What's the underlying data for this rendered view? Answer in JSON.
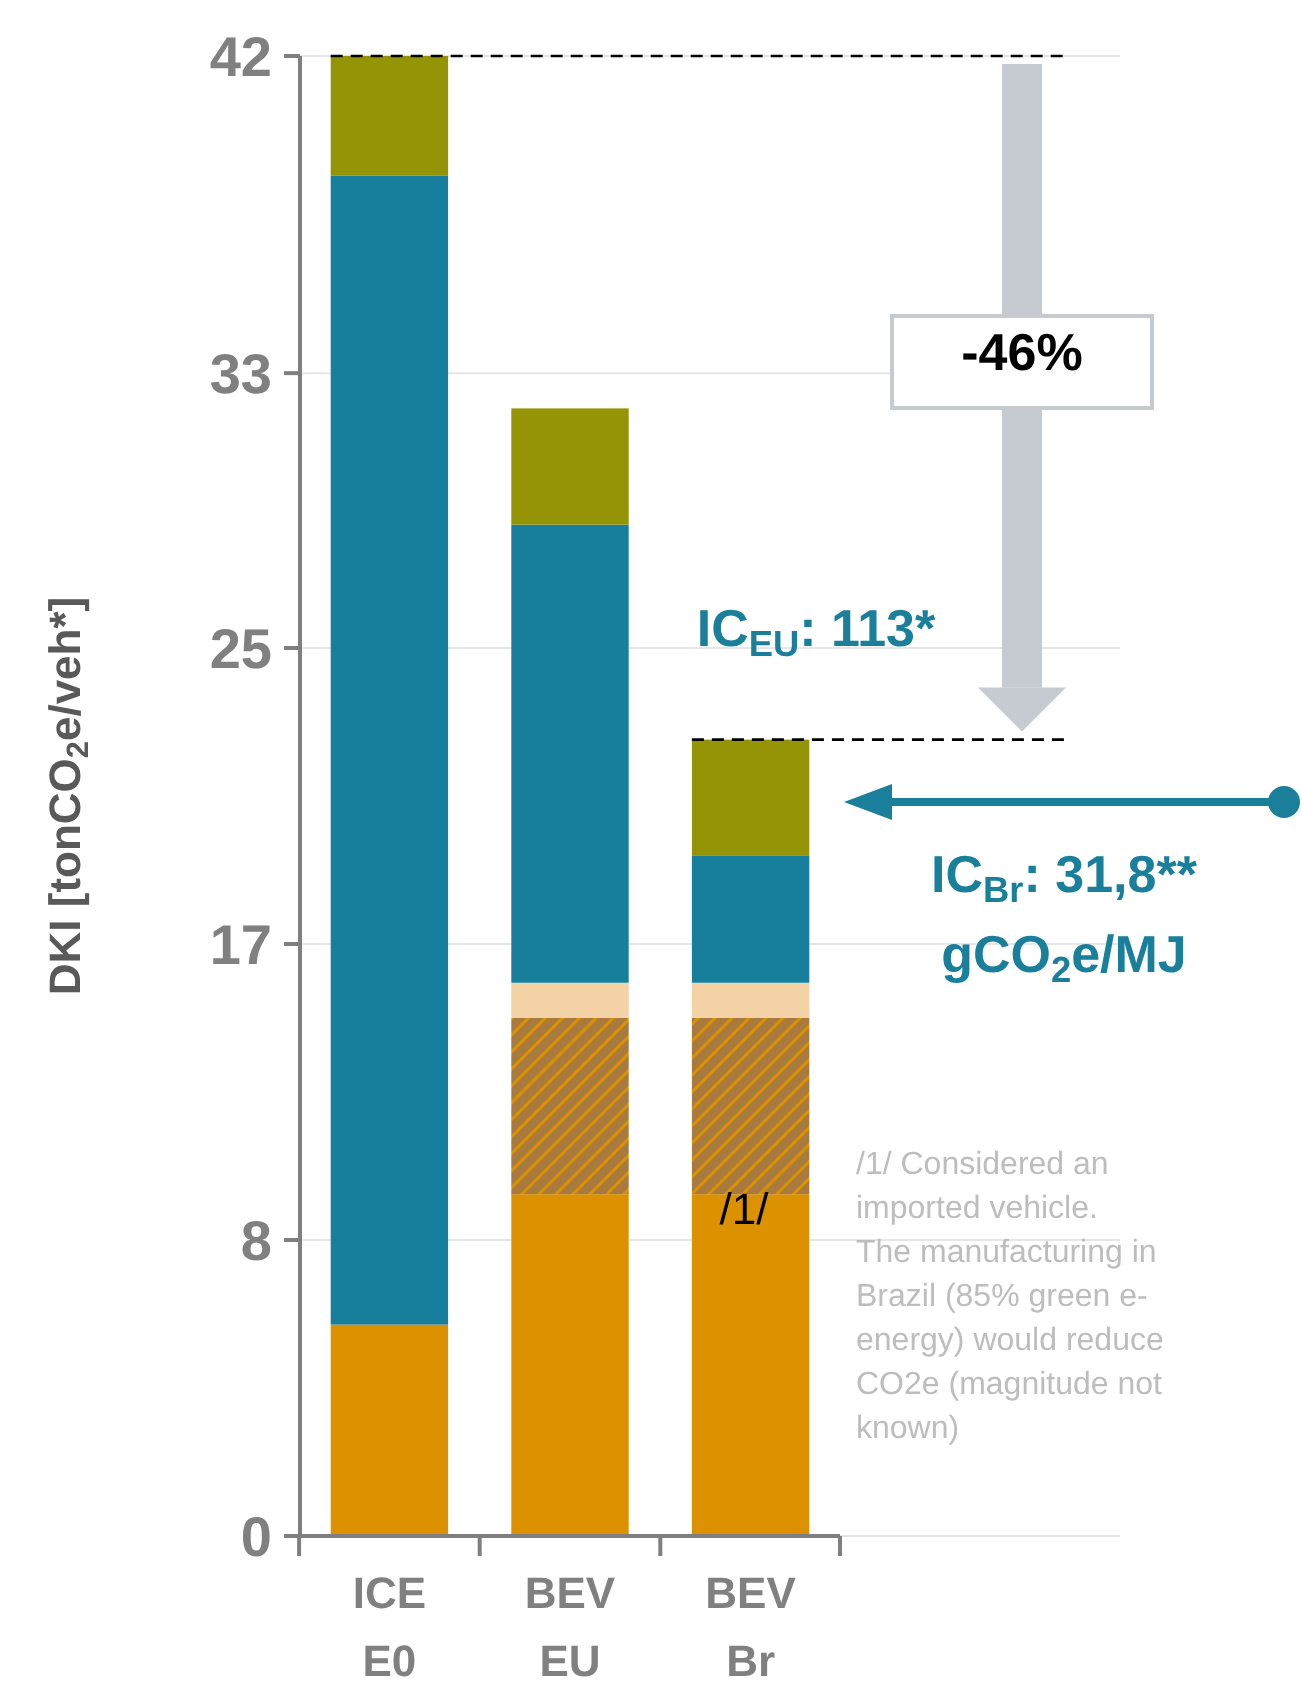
{
  "chart_data": {
    "type": "bar",
    "stacked": true,
    "ylabel": "DKI [tonCO$_{2}$e/veh*]",
    "categories": [
      "ICE E0",
      "BEV EU",
      "BEV Br"
    ],
    "series": [
      {
        "color": "#db9100",
        "values": [
          6.0,
          9.7,
          9.7
        ]
      },
      {
        "color": "#a87a3e",
        "values": [
          null,
          5.0,
          5.0
        ]
      },
      {
        "color": "#f3d3a6",
        "values": [
          null,
          1.0,
          1.0
        ]
      },
      {
        "color": "#177f9c",
        "values": [
          32.6,
          13.0,
          3.6
        ]
      },
      {
        "color": "#959406",
        "values": [
          3.4,
          3.3,
          3.3
        ]
      }
    ],
    "ylim": [
      0,
      42
    ],
    "yticks": [
      {
        "value": 0,
        "label": "0"
      },
      {
        "value": 8.4,
        "label": "8"
      },
      {
        "value": 16.8,
        "label": "17"
      },
      {
        "value": 25.2,
        "label": "25"
      },
      {
        "value": 33,
        "label": "33"
      },
      {
        "value": 42,
        "label": "42"
      }
    ],
    "grid": "y",
    "ref_lines": [
      {
        "axis": "y",
        "value": 42,
        "color": "#000000",
        "line_style": "dashed"
      },
      {
        "axis": "y",
        "value": 22.6,
        "color": "#000000",
        "line_style": "dashed"
      }
    ],
    "annotations": [
      "-46%",
      "IC$_{EU}$: 113*",
      "IC$_{Br}$: 31,8**\ngCO$_{2}$e/MJ",
      "/1/",
      "/1/ Considered an\nimported vehicle.\nThe manufacturing in\nBrazil (85% green e-\nenergy) would reduce\nCO2e (magnitude not\nknown)"
    ]
  }
}
